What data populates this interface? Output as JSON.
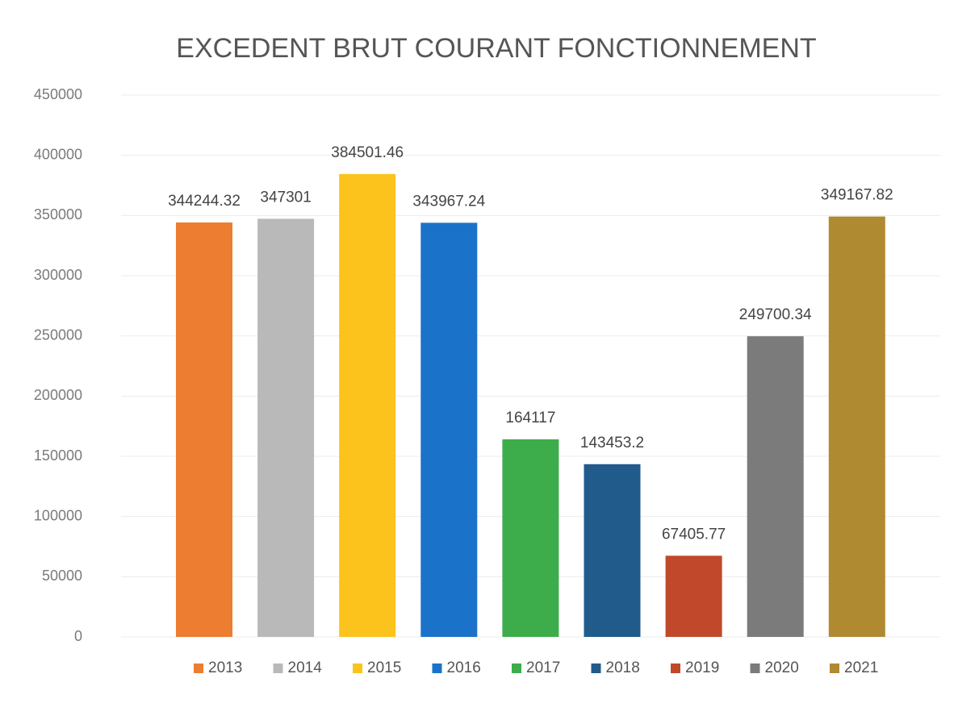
{
  "chart_data": {
    "type": "bar",
    "title": "EXCEDENT BRUT COURANT FONCTIONNEMENT",
    "series": [
      {
        "name": "2013",
        "color": "#ed7d31",
        "values": [
          344244.32
        ]
      },
      {
        "name": "2014",
        "color": "#b9b9b9",
        "values": [
          347301
        ]
      },
      {
        "name": "2015",
        "color": "#fbc31c",
        "values": [
          384501.46
        ]
      },
      {
        "name": "2016",
        "color": "#1a73c9",
        "values": [
          343967.24
        ]
      },
      {
        "name": "2017",
        "color": "#3dad4c",
        "values": [
          164117
        ]
      },
      {
        "name": "2018",
        "color": "#215b8c",
        "values": [
          143453.2
        ]
      },
      {
        "name": "2019",
        "color": "#c2482b",
        "values": [
          67405.77
        ]
      },
      {
        "name": "2020",
        "color": "#7b7b7b",
        "values": [
          249700.34
        ]
      },
      {
        "name": "2021",
        "color": "#b08a30",
        "values": [
          349167.82
        ]
      }
    ],
    "ylim": [
      0,
      450000
    ],
    "yticks": [
      0,
      50000,
      100000,
      150000,
      200000,
      250000,
      300000,
      350000,
      400000,
      450000
    ],
    "grid": true,
    "legend": "bottom"
  }
}
